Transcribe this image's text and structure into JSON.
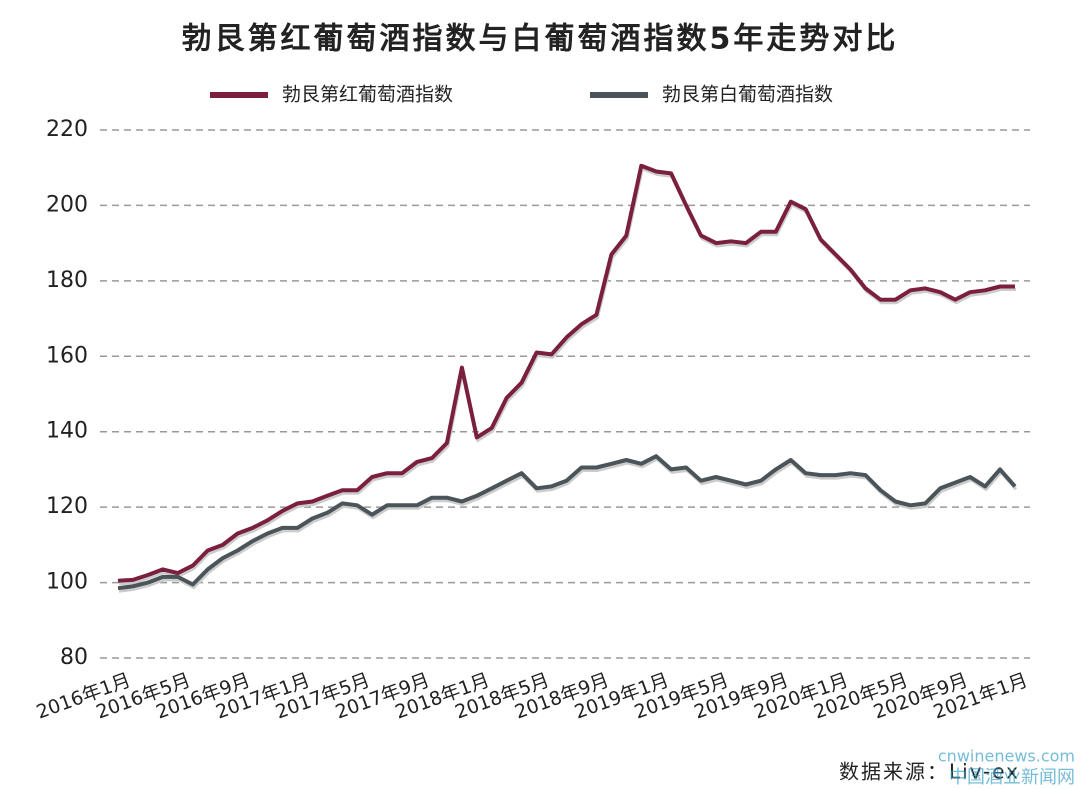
{
  "chart_data": {
    "type": "line",
    "title": "勃艮第红葡萄酒指数与白葡萄酒指数5年走势对比",
    "source": "数据来源：Liv-ex",
    "watermark": [
      "cnwinenews.com",
      "中国酒业新闻网"
    ],
    "categories": [
      "2016年1月",
      null,
      null,
      null,
      "2016年5月",
      null,
      null,
      null,
      "2016年9月",
      null,
      null,
      null,
      "2017年1月",
      null,
      null,
      null,
      "2017年5月",
      null,
      null,
      null,
      "2017年9月",
      null,
      null,
      null,
      "2018年1月",
      null,
      null,
      null,
      "2018年5月",
      null,
      null,
      null,
      "2018年9月",
      null,
      null,
      null,
      "2019年1月",
      null,
      null,
      null,
      "2019年5月",
      null,
      null,
      null,
      "2019年9月",
      null,
      null,
      null,
      "2020年1月",
      null,
      null,
      null,
      "2020年5月",
      null,
      null,
      null,
      "2020年9月",
      null,
      null,
      null,
      "2021年1月"
    ],
    "series": [
      {
        "name": "勃艮第红葡萄酒指数",
        "color": "#7a1f3d",
        "values": [
          100.5,
          100.7,
          102,
          103.5,
          102.5,
          104.5,
          108.5,
          110,
          113,
          114.5,
          116.5,
          119,
          121,
          121.5,
          123,
          124.5,
          124.5,
          128,
          129,
          129,
          132,
          133,
          137,
          157,
          138.5,
          141,
          149,
          153,
          161,
          160.5,
          165,
          168.5,
          171,
          187,
          192,
          210.5,
          209,
          208.5,
          200,
          192,
          190,
          190.5,
          190,
          193,
          193,
          201,
          199,
          191,
          187,
          183,
          178,
          175,
          175,
          177.5,
          178,
          177,
          175,
          177,
          177.5,
          178.5,
          178.5
        ]
      },
      {
        "name": "勃艮第白葡萄酒指数",
        "color": "#4a5459",
        "values": [
          98.5,
          99,
          100,
          101.5,
          101.5,
          99.5,
          103.5,
          106.5,
          108.5,
          111,
          113,
          114.5,
          114.5,
          117,
          118.5,
          121,
          120.5,
          118,
          120.5,
          120.5,
          120.5,
          122.5,
          122.5,
          121.5,
          123,
          125,
          127,
          129,
          125,
          125.5,
          127,
          130.5,
          130.5,
          131.5,
          132.5,
          131.5,
          133.5,
          130,
          130.5,
          127,
          128,
          127,
          126,
          127,
          130,
          132.5,
          129,
          128.5,
          128.5,
          129,
          128.5,
          124.5,
          121.5,
          120.5,
          121,
          125,
          126.5,
          128,
          125.5,
          130,
          125.5
        ]
      }
    ],
    "ylim": [
      80,
      220
    ],
    "yticks": [
      80,
      100,
      120,
      140,
      160,
      180,
      200,
      220
    ],
    "grid": true
  }
}
